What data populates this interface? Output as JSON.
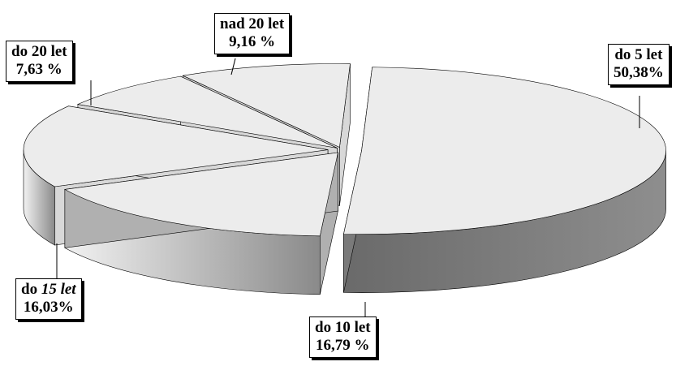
{
  "chart_data": {
    "type": "pie",
    "style": "3d-exploded",
    "slices": [
      {
        "label_prefix": "do  5 let",
        "label_italic": "",
        "value_text": "50,38%",
        "value": 50.38,
        "color": "#ececec",
        "side_color": "#7a7a7a"
      },
      {
        "label_prefix": "do 10 let",
        "label_italic": "",
        "value_text": "16,79 %",
        "value": 16.79,
        "color": "#ececec",
        "side_color": "#b0b0b0"
      },
      {
        "label_prefix": "do ",
        "label_italic": "15 let",
        "value_text": "16,03%",
        "value": 16.03,
        "color": "#ececec",
        "side_color": "#d8d8d8"
      },
      {
        "label_prefix": "do 20 let",
        "label_italic": "",
        "value_text": "7,63 %",
        "value": 7.63,
        "color": "#ececec",
        "side_color": "#d8d8d8"
      },
      {
        "label_prefix": "nad 20 let",
        "label_italic": "",
        "value_text": "9,16 %",
        "value": 9.16,
        "color": "#ececec",
        "side_color": "#d8d8d8"
      }
    ]
  }
}
